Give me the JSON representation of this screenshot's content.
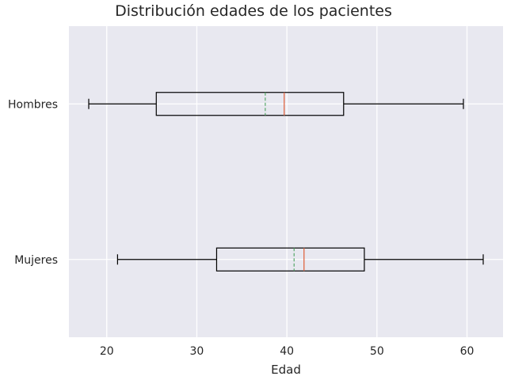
{
  "chart_data": {
    "type": "boxplot",
    "orientation": "horizontal",
    "title": "Distribución edades de los pacientes",
    "xlabel": "Edad",
    "ylabel": "",
    "xlim": [
      15.8,
      64.0
    ],
    "xticks": [
      20,
      30,
      40,
      50,
      60
    ],
    "grid": true,
    "background": "#e8e8f0",
    "grid_color": "#ffffff",
    "box_color": "#000000",
    "median_color": "#e07050",
    "mean_color": "#55a868",
    "mean_style": "dashed",
    "categories": [
      "Hombres",
      "Mujeres"
    ],
    "boxes": [
      {
        "label": "Hombres",
        "whisker_low": 18.0,
        "q1": 25.5,
        "median": 39.7,
        "mean": 37.6,
        "q3": 46.3,
        "whisker_high": 59.6
      },
      {
        "label": "Mujeres",
        "whisker_low": 21.2,
        "q1": 32.2,
        "median": 41.9,
        "mean": 40.8,
        "q3": 48.6,
        "whisker_high": 61.8
      }
    ]
  }
}
